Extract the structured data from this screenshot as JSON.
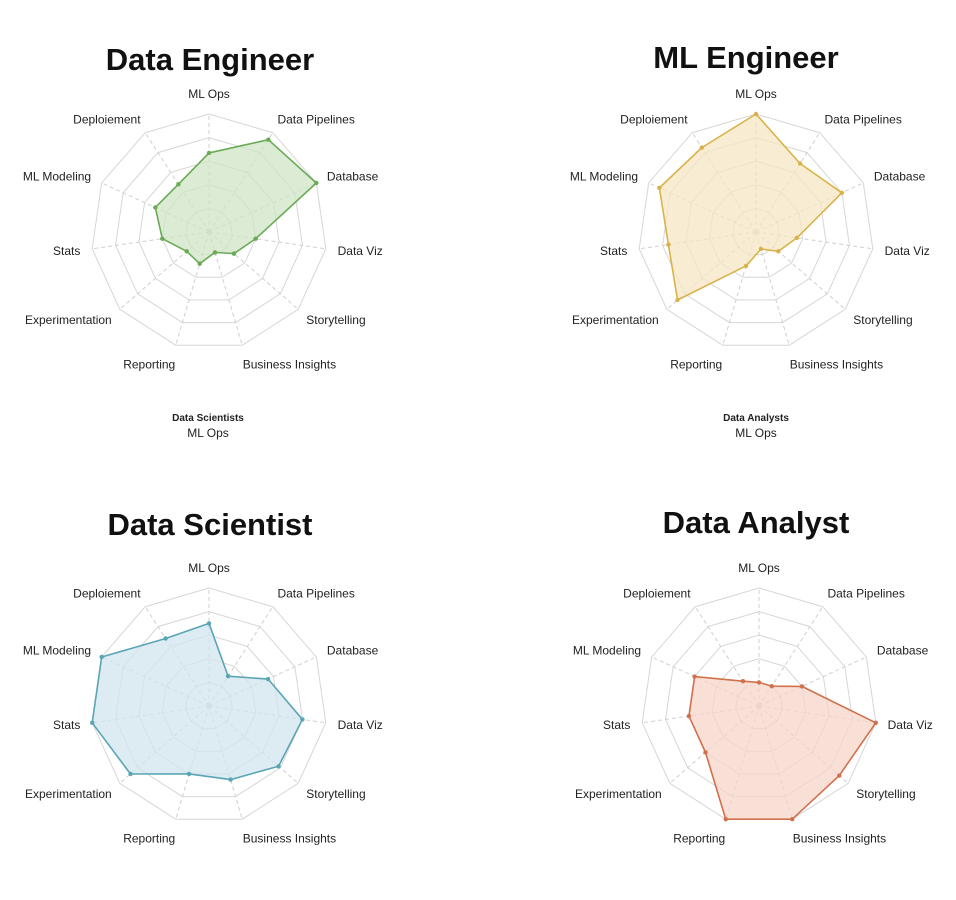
{
  "header": {
    "cut_title": ""
  },
  "chart_data": [
    {
      "type": "radar",
      "title": "Data Engineer",
      "color": "#6aaa55",
      "fill": "#cfe4c6",
      "axes": [
        "ML Ops",
        "Data Pipelines",
        "Database",
        "Data Viz",
        "Storytelling",
        "Business Insights",
        "Reporting",
        "Experimentation",
        "Stats",
        "ML Modeling",
        "Deploiement"
      ],
      "rmax": 10,
      "rings": 5,
      "values": [
        6.7,
        9.3,
        10,
        4.0,
        2.8,
        1.8,
        2.8,
        2.5,
        4.0,
        5.0,
        4.8
      ]
    },
    {
      "type": "radar",
      "title": "ML Engineer",
      "color": "#d9b34a",
      "fill": "#f5e7c3",
      "axes": [
        "ML Ops",
        "Data Pipelines",
        "Database",
        "Data Viz",
        "Storytelling",
        "Business Insights",
        "Reporting",
        "Experimentation",
        "Stats",
        "ML Modeling",
        "Deploiement"
      ],
      "rmax": 10,
      "rings": 5,
      "values": [
        10,
        6.9,
        8.0,
        3.5,
        2.5,
        1.5,
        3.0,
        8.8,
        7.5,
        9.0,
        8.5
      ]
    },
    {
      "type": "radar",
      "title": "Data Scientist",
      "color": "#5aa5b5",
      "fill": "#d2e5ef",
      "axes": [
        "ML Ops",
        "Data Pipelines",
        "Database",
        "Data Viz",
        "Storytelling",
        "Business Insights",
        "Reporting",
        "Experimentation",
        "Stats",
        "ML Modeling",
        "Deploiement"
      ],
      "rmax": 10,
      "rings": 5,
      "values": [
        7.0,
        3.0,
        5.5,
        8.0,
        7.8,
        6.5,
        6.0,
        8.8,
        10,
        10,
        6.8
      ]
    },
    {
      "type": "radar",
      "title": "Data Analyst",
      "color": "#d0704c",
      "fill": "#f5d6c8",
      "axes": [
        "ML Ops",
        "Data Pipelines",
        "Database",
        "Data Viz",
        "Storytelling",
        "Business Insights",
        "Reporting",
        "Experimentation",
        "Stats",
        "ML Modeling",
        "Deploiement"
      ],
      "rmax": 10,
      "rings": 5,
      "values": [
        2.0,
        2.0,
        4.0,
        10,
        9.0,
        10,
        10,
        6.0,
        6.0,
        6.0,
        2.5
      ]
    }
  ],
  "legends": [
    {
      "head": "Data Scientists",
      "sub": "ML Ops"
    },
    {
      "head": "Data Analysts",
      "sub": "ML Ops"
    }
  ]
}
